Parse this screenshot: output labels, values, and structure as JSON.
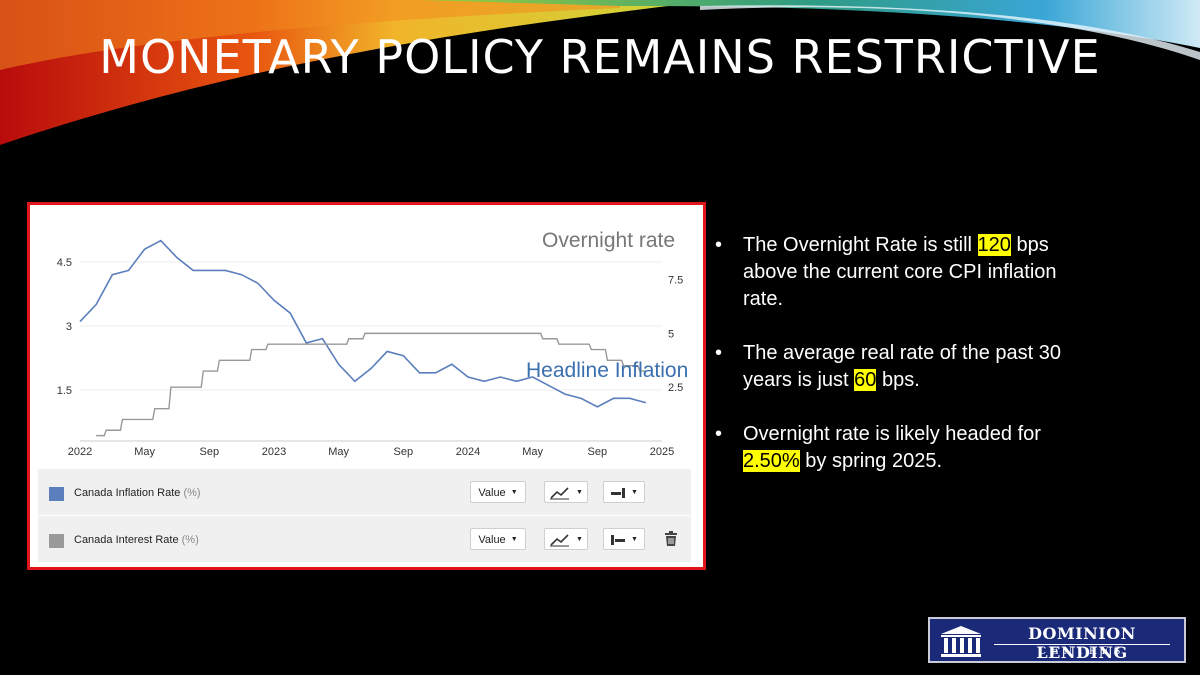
{
  "slide": {
    "title": "MONETARY POLICY REMAINS RESTRICTIVE",
    "colors": {
      "background": "#000000",
      "panel_border": "#e0141b",
      "highlight": "#ffff00"
    }
  },
  "bullets": [
    {
      "parts": [
        {
          "text": " The Overnight Rate is still "
        },
        {
          "text": "120",
          "highlight": true
        },
        {
          "text": " bps above the current core CPI inflation rate."
        }
      ]
    },
    {
      "parts": [
        {
          "text": "The average real rate of the past 30 years is just "
        },
        {
          "text": "60",
          "highlight": true
        },
        {
          "text": " bps."
        }
      ]
    },
    {
      "parts": [
        {
          "text": "Overnight rate is likely headed for "
        },
        {
          "text": "2.50%",
          "highlight": true
        },
        {
          "text": "  by spring 2025."
        }
      ]
    }
  ],
  "chart_data": {
    "type": "line",
    "x_tick_labels": [
      "2022",
      "May",
      "Sep",
      "2023",
      "May",
      "Sep",
      "2024",
      "May",
      "Sep",
      "2025"
    ],
    "y_left": {
      "ticks": [
        1.5,
        3,
        4.5
      ],
      "range": [
        0.3,
        5.6
      ]
    },
    "y_right": {
      "ticks": [
        2.5,
        5,
        7.5
      ],
      "range": [
        0,
        10.5
      ]
    },
    "annotations": {
      "overnight": "Overnight rate",
      "inflation": "Headline Inflation"
    },
    "series": [
      {
        "name": "Canada Inflation Rate",
        "unit": "(%)",
        "axis": "left",
        "color": "#5b7fbd",
        "x": [
          "2022-01",
          "2022-02",
          "2022-03",
          "2022-04",
          "2022-05",
          "2022-06",
          "2022-07",
          "2022-08",
          "2022-09",
          "2022-10",
          "2022-11",
          "2022-12",
          "2023-01",
          "2023-02",
          "2023-03",
          "2023-04",
          "2023-05",
          "2023-06",
          "2023-07",
          "2023-08",
          "2023-09",
          "2023-10",
          "2023-11",
          "2023-12",
          "2024-01",
          "2024-02",
          "2024-03",
          "2024-04",
          "2024-05",
          "2024-06",
          "2024-07",
          "2024-08",
          "2024-09",
          "2024-10",
          "2024-11",
          "2024-12"
        ],
        "values": [
          3.1,
          3.5,
          4.2,
          4.3,
          4.8,
          5.0,
          4.6,
          4.3,
          4.3,
          4.3,
          4.2,
          4.0,
          3.6,
          3.3,
          2.6,
          2.7,
          2.1,
          1.7,
          2.0,
          2.4,
          2.3,
          1.9,
          1.9,
          2.1,
          1.8,
          1.7,
          1.8,
          1.7,
          1.8,
          1.6,
          1.4,
          1.3,
          1.1,
          1.3,
          1.3,
          1.2
        ]
      },
      {
        "name": "Canada Interest Rate",
        "unit": "(%)",
        "axis": "right",
        "color": "#999999",
        "x": [
          "2022-02",
          "2022-03",
          "2022-04",
          "2022-05",
          "2022-06",
          "2022-07",
          "2022-08",
          "2022-09",
          "2022-10",
          "2022-11",
          "2022-12",
          "2023-01",
          "2023-02",
          "2023-03",
          "2023-04",
          "2023-05",
          "2023-06",
          "2023-07",
          "2023-08",
          "2023-09",
          "2023-10",
          "2023-11",
          "2023-12",
          "2024-01",
          "2024-02",
          "2024-03",
          "2024-04",
          "2024-05",
          "2024-06",
          "2024-07",
          "2024-08",
          "2024-09",
          "2024-10",
          "2024-11",
          "2024-12"
        ],
        "values": [
          0.25,
          0.5,
          1.0,
          1.0,
          1.5,
          2.5,
          2.5,
          3.25,
          3.75,
          3.75,
          4.25,
          4.5,
          4.5,
          4.5,
          4.5,
          4.5,
          4.75,
          5.0,
          5.0,
          5.0,
          5.0,
          5.0,
          5.0,
          5.0,
          5.0,
          5.0,
          5.0,
          5.0,
          4.75,
          4.5,
          4.5,
          4.25,
          3.75,
          3.5,
          3.25
        ]
      }
    ]
  },
  "legend": [
    {
      "label": "Canada Inflation Rate",
      "unit": "(%)",
      "color": "#5b7fbd",
      "value_label": "Value"
    },
    {
      "label": "Canada Interest Rate",
      "unit": "(%)",
      "color": "#999999",
      "value_label": "Value"
    }
  ],
  "logo": {
    "line1": "DOMINION LENDING",
    "line2": "CENTRES"
  }
}
